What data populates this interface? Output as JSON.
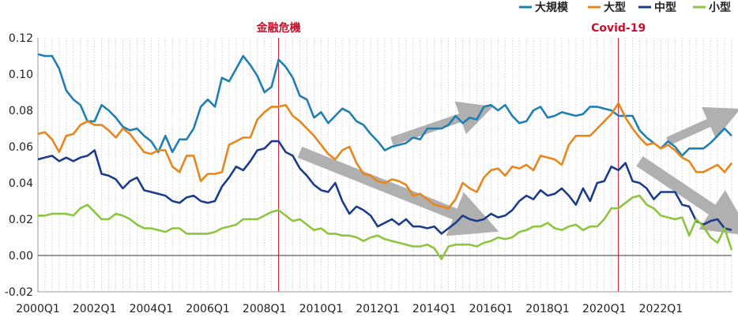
{
  "chart_data": {
    "type": "line",
    "x_tick_labels": [
      "2000Q1",
      "2002Q1",
      "2004Q1",
      "2006Q1",
      "2008Q1",
      "2010Q1",
      "2012Q1",
      "2014Q1",
      "2016Q1",
      "2018Q1",
      "2020Q1",
      "2022Q1"
    ],
    "x_start": "2000Q1",
    "x_end": "2023Q4",
    "ylim": [
      -0.02,
      0.12
    ],
    "y_ticks": [
      "0.12",
      "0.10",
      "0.08",
      "0.06",
      "0.04",
      "0.02",
      "0.00",
      "-0.02"
    ],
    "grid": "vertical-dotted",
    "legend_position": "top-right",
    "series": [
      {
        "name": "大規模",
        "color": "#1f7fb3",
        "values": [
          0.111,
          0.11,
          0.11,
          0.103,
          0.091,
          0.086,
          0.083,
          0.074,
          0.074,
          0.083,
          0.08,
          0.076,
          0.071,
          0.069,
          0.07,
          0.066,
          0.063,
          0.057,
          0.066,
          0.057,
          0.064,
          0.064,
          0.07,
          0.082,
          0.086,
          0.082,
          0.098,
          0.096,
          0.103,
          0.11,
          0.105,
          0.099,
          0.09,
          0.093,
          0.108,
          0.104,
          0.098,
          0.088,
          0.086,
          0.076,
          0.079,
          0.073,
          0.077,
          0.081,
          0.079,
          0.074,
          0.072,
          0.067,
          0.063,
          0.058,
          0.06,
          0.061,
          0.062,
          0.065,
          0.064,
          0.07,
          0.07,
          0.07,
          0.072,
          0.077,
          0.073,
          0.076,
          0.075,
          0.082,
          0.083,
          0.08,
          0.083,
          0.077,
          0.073,
          0.074,
          0.08,
          0.082,
          0.076,
          0.077,
          0.079,
          0.078,
          0.077,
          0.078,
          0.082,
          0.082,
          0.081,
          0.08,
          0.077,
          0.077,
          0.077,
          0.069,
          0.065,
          0.062,
          0.059,
          0.063,
          0.06,
          0.055,
          0.059,
          0.059,
          0.059,
          0.062,
          0.066,
          0.07,
          0.066
        ]
      },
      {
        "name": "大型",
        "color": "#e8861b",
        "values": [
          0.067,
          0.068,
          0.064,
          0.057,
          0.066,
          0.067,
          0.072,
          0.074,
          0.072,
          0.072,
          0.069,
          0.065,
          0.07,
          0.067,
          0.062,
          0.057,
          0.056,
          0.058,
          0.058,
          0.049,
          0.046,
          0.055,
          0.055,
          0.041,
          0.045,
          0.045,
          0.046,
          0.061,
          0.063,
          0.065,
          0.065,
          0.075,
          0.079,
          0.082,
          0.082,
          0.083,
          0.077,
          0.074,
          0.07,
          0.066,
          0.061,
          0.056,
          0.053,
          0.058,
          0.06,
          0.051,
          0.045,
          0.044,
          0.041,
          0.04,
          0.042,
          0.041,
          0.039,
          0.033,
          0.034,
          0.031,
          0.028,
          0.027,
          0.026,
          0.031,
          0.04,
          0.037,
          0.035,
          0.043,
          0.047,
          0.048,
          0.044,
          0.049,
          0.048,
          0.05,
          0.047,
          0.055,
          0.054,
          0.053,
          0.05,
          0.061,
          0.066,
          0.066,
          0.066,
          0.07,
          0.074,
          0.078,
          0.084,
          0.076,
          0.07,
          0.065,
          0.061,
          0.062,
          0.059,
          0.061,
          0.058,
          0.054,
          0.052,
          0.046,
          0.046,
          0.048,
          0.05,
          0.046,
          0.051
        ]
      },
      {
        "name": "中型",
        "color": "#1b3b8b",
        "values": [
          0.053,
          0.054,
          0.055,
          0.052,
          0.054,
          0.052,
          0.054,
          0.055,
          0.058,
          0.045,
          0.044,
          0.042,
          0.037,
          0.041,
          0.043,
          0.036,
          0.035,
          0.034,
          0.033,
          0.03,
          0.029,
          0.032,
          0.033,
          0.03,
          0.029,
          0.03,
          0.038,
          0.043,
          0.049,
          0.047,
          0.052,
          0.058,
          0.059,
          0.063,
          0.063,
          0.057,
          0.055,
          0.048,
          0.044,
          0.039,
          0.036,
          0.035,
          0.04,
          0.03,
          0.023,
          0.027,
          0.025,
          0.022,
          0.016,
          0.018,
          0.02,
          0.017,
          0.02,
          0.016,
          0.016,
          0.015,
          0.016,
          0.012,
          0.015,
          0.018,
          0.022,
          0.02,
          0.019,
          0.02,
          0.023,
          0.021,
          0.022,
          0.025,
          0.03,
          0.033,
          0.031,
          0.036,
          0.033,
          0.034,
          0.037,
          0.033,
          0.028,
          0.037,
          0.03,
          0.04,
          0.041,
          0.049,
          0.047,
          0.051,
          0.041,
          0.04,
          0.037,
          0.031,
          0.035,
          0.035,
          0.035,
          0.028,
          0.027,
          0.019,
          0.017,
          0.019,
          0.02,
          0.015,
          0.014
        ]
      },
      {
        "name": "小型",
        "color": "#8cc63f",
        "values": [
          0.022,
          0.022,
          0.023,
          0.023,
          0.023,
          0.022,
          0.026,
          0.028,
          0.024,
          0.02,
          0.02,
          0.023,
          0.022,
          0.02,
          0.017,
          0.015,
          0.015,
          0.014,
          0.013,
          0.015,
          0.015,
          0.012,
          0.012,
          0.012,
          0.012,
          0.013,
          0.015,
          0.016,
          0.017,
          0.02,
          0.02,
          0.02,
          0.022,
          0.024,
          0.025,
          0.022,
          0.019,
          0.02,
          0.017,
          0.014,
          0.015,
          0.012,
          0.012,
          0.011,
          0.011,
          0.01,
          0.008,
          0.01,
          0.011,
          0.009,
          0.008,
          0.007,
          0.006,
          0.005,
          0.005,
          0.006,
          0.004,
          -0.002,
          0.005,
          0.006,
          0.006,
          0.006,
          0.005,
          0.007,
          0.008,
          0.01,
          0.009,
          0.01,
          0.013,
          0.014,
          0.016,
          0.016,
          0.018,
          0.015,
          0.014,
          0.016,
          0.017,
          0.014,
          0.016,
          0.016,
          0.02,
          0.026,
          0.026,
          0.029,
          0.032,
          0.033,
          0.028,
          0.026,
          0.022,
          0.021,
          0.02,
          0.021,
          0.011,
          0.02,
          0.016,
          0.01,
          0.007,
          0.015,
          0.003
        ]
      }
    ],
    "annotations": [
      {
        "text": "金融危機",
        "x_index": 34,
        "color": "#c8102e"
      },
      {
        "text": "Covid-19",
        "x_index": 82,
        "color": "#c8102e"
      }
    ],
    "trend_arrows": [
      {
        "direction": "up",
        "from_index": 50,
        "to_index": 62,
        "from_y": 0.063,
        "to_y": 0.079
      },
      {
        "direction": "down",
        "from_index": 37,
        "to_index": 62,
        "from_y": 0.057,
        "to_y": 0.018
      },
      {
        "direction": "up",
        "from_index": 89,
        "to_index": 97,
        "from_y": 0.063,
        "to_y": 0.077
      },
      {
        "direction": "down",
        "from_index": 85,
        "to_index": 98,
        "from_y": 0.052,
        "to_y": 0.018
      }
    ]
  }
}
